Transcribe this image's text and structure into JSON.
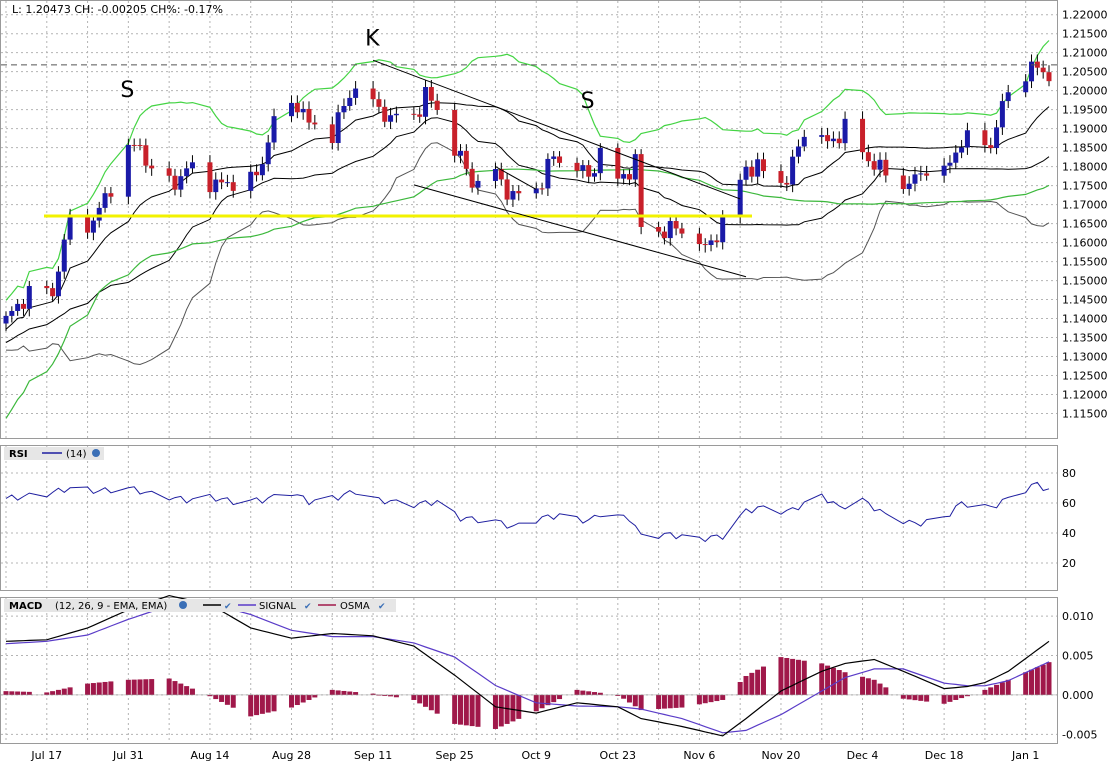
{
  "header": {
    "readout": "L: 1.20473 CH: -0.00205 CH%: -0.17%"
  },
  "annotations": [
    {
      "text": "S",
      "date": "2017-07-31",
      "price": 1.2005
    },
    {
      "text": "K",
      "date": "2017-09-11",
      "price": 1.214
    },
    {
      "text": "S",
      "date": "2017-10-18",
      "price": 1.1975
    }
  ],
  "colors": {
    "up_candle": "#1a1aa8",
    "down_candle": "#c8202a",
    "bollinger_outer": "#44d444",
    "bollinger_inner": "#000000",
    "keltner_band": "#555555",
    "sma": "#3cb83c",
    "support_line": "#f2f200",
    "rsi_line": "#1f1fa0",
    "macd_line": "#000000",
    "signal_line": "#5a3cc8",
    "osma_bars": "#a0184a",
    "grid": "#b4b4b4"
  },
  "chart_data": [
    {
      "type": "candlestick",
      "name": "price",
      "x_tick_labels": [
        "Jul 17",
        "Jul 31",
        "Aug 14",
        "Aug 28",
        "Sep 11",
        "Sep 25",
        "Oct 9",
        "Oct 23",
        "Nov 6",
        "Nov 20",
        "Dec 4",
        "Dec 18",
        "Jan 1"
      ],
      "y_tick_labels": [
        "1.22000",
        "1.21500",
        "1.21000",
        "1.20500",
        "1.20000",
        "1.19500",
        "1.19000",
        "1.18500",
        "1.18000",
        "1.17500",
        "1.17000",
        "1.16500",
        "1.16000",
        "1.15500",
        "1.15000",
        "1.14500",
        "1.14000",
        "1.13500",
        "1.13000",
        "1.12500",
        "1.12000",
        "1.11500"
      ],
      "ylim": [
        1.1125,
        1.2215
      ],
      "x_range": [
        "2017-07-10",
        "2018-01-05"
      ],
      "last_price_line": 1.2068,
      "support_level": 1.167,
      "trendlines": [
        {
          "from": [
            "2017-09-11",
            1.208
          ],
          "to": [
            "2017-11-13",
            1.1715
          ]
        },
        {
          "from": [
            "2017-09-18",
            1.1752
          ],
          "to": [
            "2017-11-14",
            1.151
          ]
        },
        {
          "from": [
            "2017-10-02",
            1.18
          ],
          "to": [
            "2017-10-09",
            1.174
          ]
        }
      ],
      "price_anchors": [
        [
          "2017-07-10",
          1.1395
        ],
        [
          "2017-07-14",
          1.147
        ],
        [
          "2017-07-18",
          1.147
        ],
        [
          "2017-07-21",
          1.166
        ],
        [
          "2017-07-25",
          1.165
        ],
        [
          "2017-07-27",
          1.172
        ],
        [
          "2017-07-31",
          1.184
        ],
        [
          "2017-08-02",
          1.186
        ],
        [
          "2017-08-04",
          1.178
        ],
        [
          "2017-08-08",
          1.176
        ],
        [
          "2017-08-11",
          1.18
        ],
        [
          "2017-08-15",
          1.175
        ],
        [
          "2017-08-18",
          1.176
        ],
        [
          "2017-08-22",
          1.177
        ],
        [
          "2017-08-25",
          1.192
        ],
        [
          "2017-08-29",
          1.197
        ],
        [
          "2017-08-31",
          1.191
        ],
        [
          "2017-09-04",
          1.189
        ],
        [
          "2017-09-08",
          1.202
        ],
        [
          "2017-09-11",
          1.196
        ],
        [
          "2017-09-14",
          1.193
        ],
        [
          "2017-09-18",
          1.193
        ],
        [
          "2017-09-20",
          1.199
        ],
        [
          "2017-09-22",
          1.195
        ],
        [
          "2017-09-25",
          1.185
        ],
        [
          "2017-09-28",
          1.176
        ],
        [
          "2017-10-02",
          1.178
        ],
        [
          "2017-10-05",
          1.172
        ],
        [
          "2017-10-09",
          1.174
        ],
        [
          "2017-10-12",
          1.1825
        ],
        [
          "2017-10-16",
          1.18
        ],
        [
          "2017-10-18",
          1.177
        ],
        [
          "2017-10-20",
          1.184
        ],
        [
          "2017-10-23",
          1.176
        ],
        [
          "2017-10-26",
          1.181
        ],
        [
          "2017-10-27",
          1.164
        ],
        [
          "2017-10-31",
          1.163
        ],
        [
          "2017-11-03",
          1.164
        ],
        [
          "2017-11-07",
          1.158
        ],
        [
          "2017-11-10",
          1.165
        ],
        [
          "2017-11-14",
          1.18
        ],
        [
          "2017-11-17",
          1.179
        ],
        [
          "2017-11-21",
          1.176
        ],
        [
          "2017-11-24",
          1.19
        ],
        [
          "2017-11-28",
          1.186
        ],
        [
          "2017-12-01",
          1.19
        ],
        [
          "2017-12-05",
          1.182
        ],
        [
          "2017-12-08",
          1.178
        ],
        [
          "2017-12-12",
          1.175
        ],
        [
          "2017-12-15",
          1.18
        ],
        [
          "2017-12-18",
          1.178
        ],
        [
          "2017-12-21",
          1.187
        ],
        [
          "2017-12-26",
          1.186
        ],
        [
          "2017-12-29",
          1.2
        ],
        [
          "2018-01-02",
          1.206
        ],
        [
          "2018-01-05",
          1.2047
        ]
      ]
    },
    {
      "type": "line",
      "name": "RSI",
      "title": "RSI",
      "legend": "(14)",
      "y_tick_labels": [
        "80",
        "60",
        "40",
        "20"
      ],
      "ylim": [
        2,
        98
      ],
      "series": [
        {
          "name": "(14)",
          "points": [
            [
              "2017-07-10",
              63
            ],
            [
              "2017-07-17",
              66
            ],
            [
              "2017-07-21",
              70
            ],
            [
              "2017-07-26",
              68
            ],
            [
              "2017-07-31",
              70
            ],
            [
              "2017-08-04",
              66
            ],
            [
              "2017-08-10",
              62
            ],
            [
              "2017-08-14",
              64
            ],
            [
              "2017-08-18",
              61
            ],
            [
              "2017-08-23",
              62
            ],
            [
              "2017-08-28",
              67
            ],
            [
              "2017-08-31",
              61
            ],
            [
              "2017-09-05",
              64
            ],
            [
              "2017-09-08",
              68
            ],
            [
              "2017-09-12",
              62
            ],
            [
              "2017-09-18",
              59
            ],
            [
              "2017-09-22",
              61
            ],
            [
              "2017-09-26",
              50
            ],
            [
              "2017-10-02",
              48
            ],
            [
              "2017-10-05",
              44
            ],
            [
              "2017-10-10",
              50
            ],
            [
              "2017-10-13",
              52
            ],
            [
              "2017-10-18",
              48
            ],
            [
              "2017-10-20",
              53
            ],
            [
              "2017-10-25",
              50
            ],
            [
              "2017-10-27",
              38
            ],
            [
              "2017-11-01",
              39
            ],
            [
              "2017-11-06",
              36
            ],
            [
              "2017-11-10",
              38
            ],
            [
              "2017-11-14",
              55
            ],
            [
              "2017-11-17",
              57
            ],
            [
              "2017-11-21",
              54
            ],
            [
              "2017-11-27",
              65
            ],
            [
              "2017-11-30",
              57
            ],
            [
              "2017-12-04",
              62
            ],
            [
              "2017-12-08",
              52
            ],
            [
              "2017-12-13",
              46
            ],
            [
              "2017-12-18",
              50
            ],
            [
              "2017-12-21",
              60
            ],
            [
              "2017-12-26",
              57
            ],
            [
              "2017-12-29",
              63
            ],
            [
              "2018-01-03",
              73
            ],
            [
              "2018-01-05",
              68
            ]
          ]
        }
      ]
    },
    {
      "type": "line_and_bar",
      "name": "MACD",
      "title": "MACD",
      "legend": [
        "(12, 26, 9 - EMA, EMA)",
        "SIGNAL",
        "OSMA"
      ],
      "y_tick_labels": [
        "0.010",
        "0.005",
        "0.000",
        "-0.005"
      ],
      "ylim": [
        -0.0061,
        0.0123
      ],
      "series": [
        {
          "name": "(12, 26, 9 - EMA, EMA)",
          "points": [
            [
              "2017-07-10",
              0.0068
            ],
            [
              "2017-07-17",
              0.007
            ],
            [
              "2017-07-24",
              0.0085
            ],
            [
              "2017-07-31",
              0.0108
            ],
            [
              "2017-08-07",
              0.0126
            ],
            [
              "2017-08-14",
              0.0115
            ],
            [
              "2017-08-21",
              0.0085
            ],
            [
              "2017-08-28",
              0.0072
            ],
            [
              "2017-09-04",
              0.0078
            ],
            [
              "2017-09-11",
              0.0075
            ],
            [
              "2017-09-18",
              0.0062
            ],
            [
              "2017-09-25",
              0.0025
            ],
            [
              "2017-10-02",
              -0.0015
            ],
            [
              "2017-10-09",
              -0.0023
            ],
            [
              "2017-10-16",
              -0.001
            ],
            [
              "2017-10-23",
              -0.0015
            ],
            [
              "2017-10-27",
              -0.003
            ],
            [
              "2017-11-03",
              -0.004
            ],
            [
              "2017-11-10",
              -0.0052
            ],
            [
              "2017-11-14",
              -0.003
            ],
            [
              "2017-11-20",
              0.0005
            ],
            [
              "2017-11-27",
              0.003
            ],
            [
              "2017-12-01",
              0.004
            ],
            [
              "2017-12-06",
              0.0045
            ],
            [
              "2017-12-11",
              0.003
            ],
            [
              "2017-12-18",
              0.0008
            ],
            [
              "2017-12-24",
              0.0012
            ],
            [
              "2017-12-29",
              0.003
            ],
            [
              "2018-01-05",
              0.0068
            ]
          ]
        },
        {
          "name": "SIGNAL",
          "points": [
            [
              "2017-07-10",
              0.0065
            ],
            [
              "2017-07-17",
              0.0068
            ],
            [
              "2017-07-24",
              0.0076
            ],
            [
              "2017-07-31",
              0.0096
            ],
            [
              "2017-08-07",
              0.0113
            ],
            [
              "2017-08-14",
              0.0116
            ],
            [
              "2017-08-21",
              0.0102
            ],
            [
              "2017-08-28",
              0.0082
            ],
            [
              "2017-09-04",
              0.0074
            ],
            [
              "2017-09-11",
              0.0074
            ],
            [
              "2017-09-18",
              0.0066
            ],
            [
              "2017-09-25",
              0.0048
            ],
            [
              "2017-10-02",
              0.0012
            ],
            [
              "2017-10-09",
              -0.001
            ],
            [
              "2017-10-16",
              -0.0014
            ],
            [
              "2017-10-23",
              -0.0015
            ],
            [
              "2017-10-27",
              -0.0018
            ],
            [
              "2017-11-03",
              -0.003
            ],
            [
              "2017-11-10",
              -0.0048
            ],
            [
              "2017-11-14",
              -0.0045
            ],
            [
              "2017-11-20",
              -0.0025
            ],
            [
              "2017-11-27",
              0.0005
            ],
            [
              "2017-12-01",
              0.0022
            ],
            [
              "2017-12-06",
              0.0033
            ],
            [
              "2017-12-11",
              0.0033
            ],
            [
              "2017-12-18",
              0.0015
            ],
            [
              "2017-12-24",
              0.001
            ],
            [
              "2017-12-29",
              0.0018
            ],
            [
              "2018-01-05",
              0.0042
            ]
          ]
        }
      ]
    }
  ]
}
